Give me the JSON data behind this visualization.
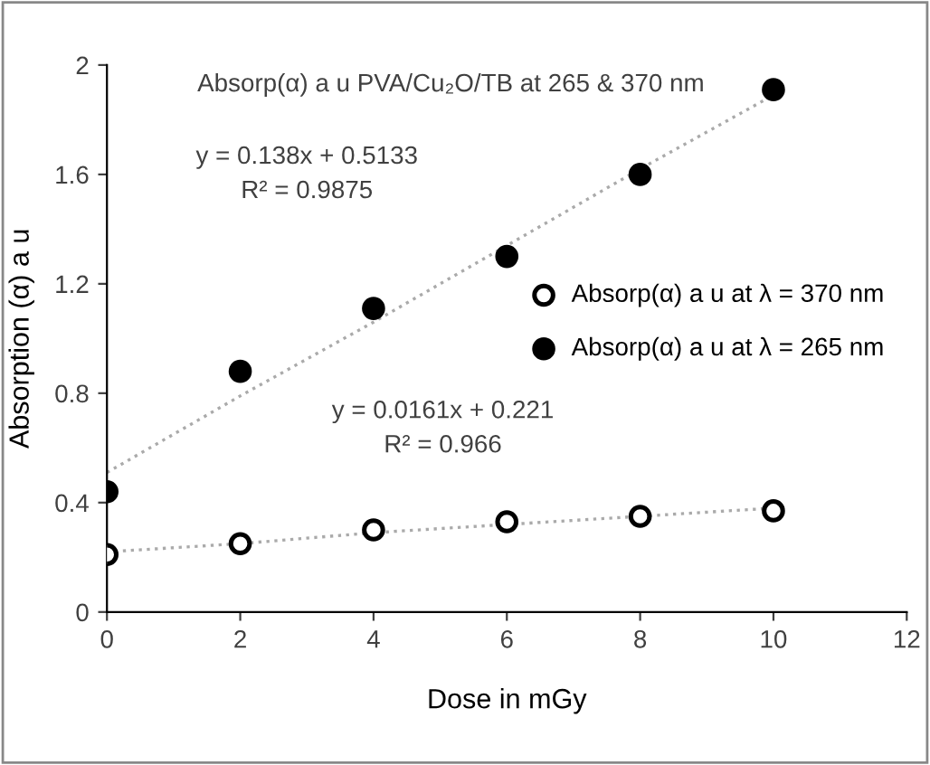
{
  "chart_data": {
    "type": "scatter",
    "title": "Absorp(α) a u PVA/Cu₂O/TB at 265 & 370 nm",
    "xlabel": "Dose in mGy",
    "ylabel": "Absorption (α) a u",
    "x": [
      0,
      2,
      4,
      6,
      8,
      10
    ],
    "series": [
      {
        "name": "Absorp(α) a u at λ = 370 nm",
        "color": "#ffffff",
        "values": [
          0.21,
          0.25,
          0.3,
          0.33,
          0.35,
          0.37
        ]
      },
      {
        "name": "Absorp(α) a u at λ = 265 nm",
        "color": "#000000",
        "values": [
          0.44,
          0.88,
          1.11,
          1.3,
          1.6,
          1.91
        ]
      },
      {
        "type": "line",
        "color": "#aaaaaa",
        "line_style": "dotted",
        "marker": "none",
        "values": [
          0.51,
          0.79,
          1.06,
          1.34,
          1.62,
          1.89
        ]
      },
      {
        "type": "line",
        "color": "#aaaaaa",
        "line_style": "dotted",
        "marker": "none",
        "values": [
          0.22,
          0.25,
          0.29,
          0.32,
          0.35,
          0.38
        ]
      }
    ],
    "annotations": [
      "y = 0.138x + 0.5133\nR² = 0.9875",
      "y = 0.0161x + 0.221\nR² = 0.966"
    ],
    "xlim": [
      0,
      12
    ],
    "xticks": [
      0,
      2,
      4,
      6,
      8,
      10,
      12
    ],
    "ylim": [
      0,
      2
    ],
    "yticks": [
      0,
      0.4,
      0.8,
      1.2,
      1.6,
      2
    ],
    "marker": "circle",
    "grid": false,
    "legend": "right"
  }
}
